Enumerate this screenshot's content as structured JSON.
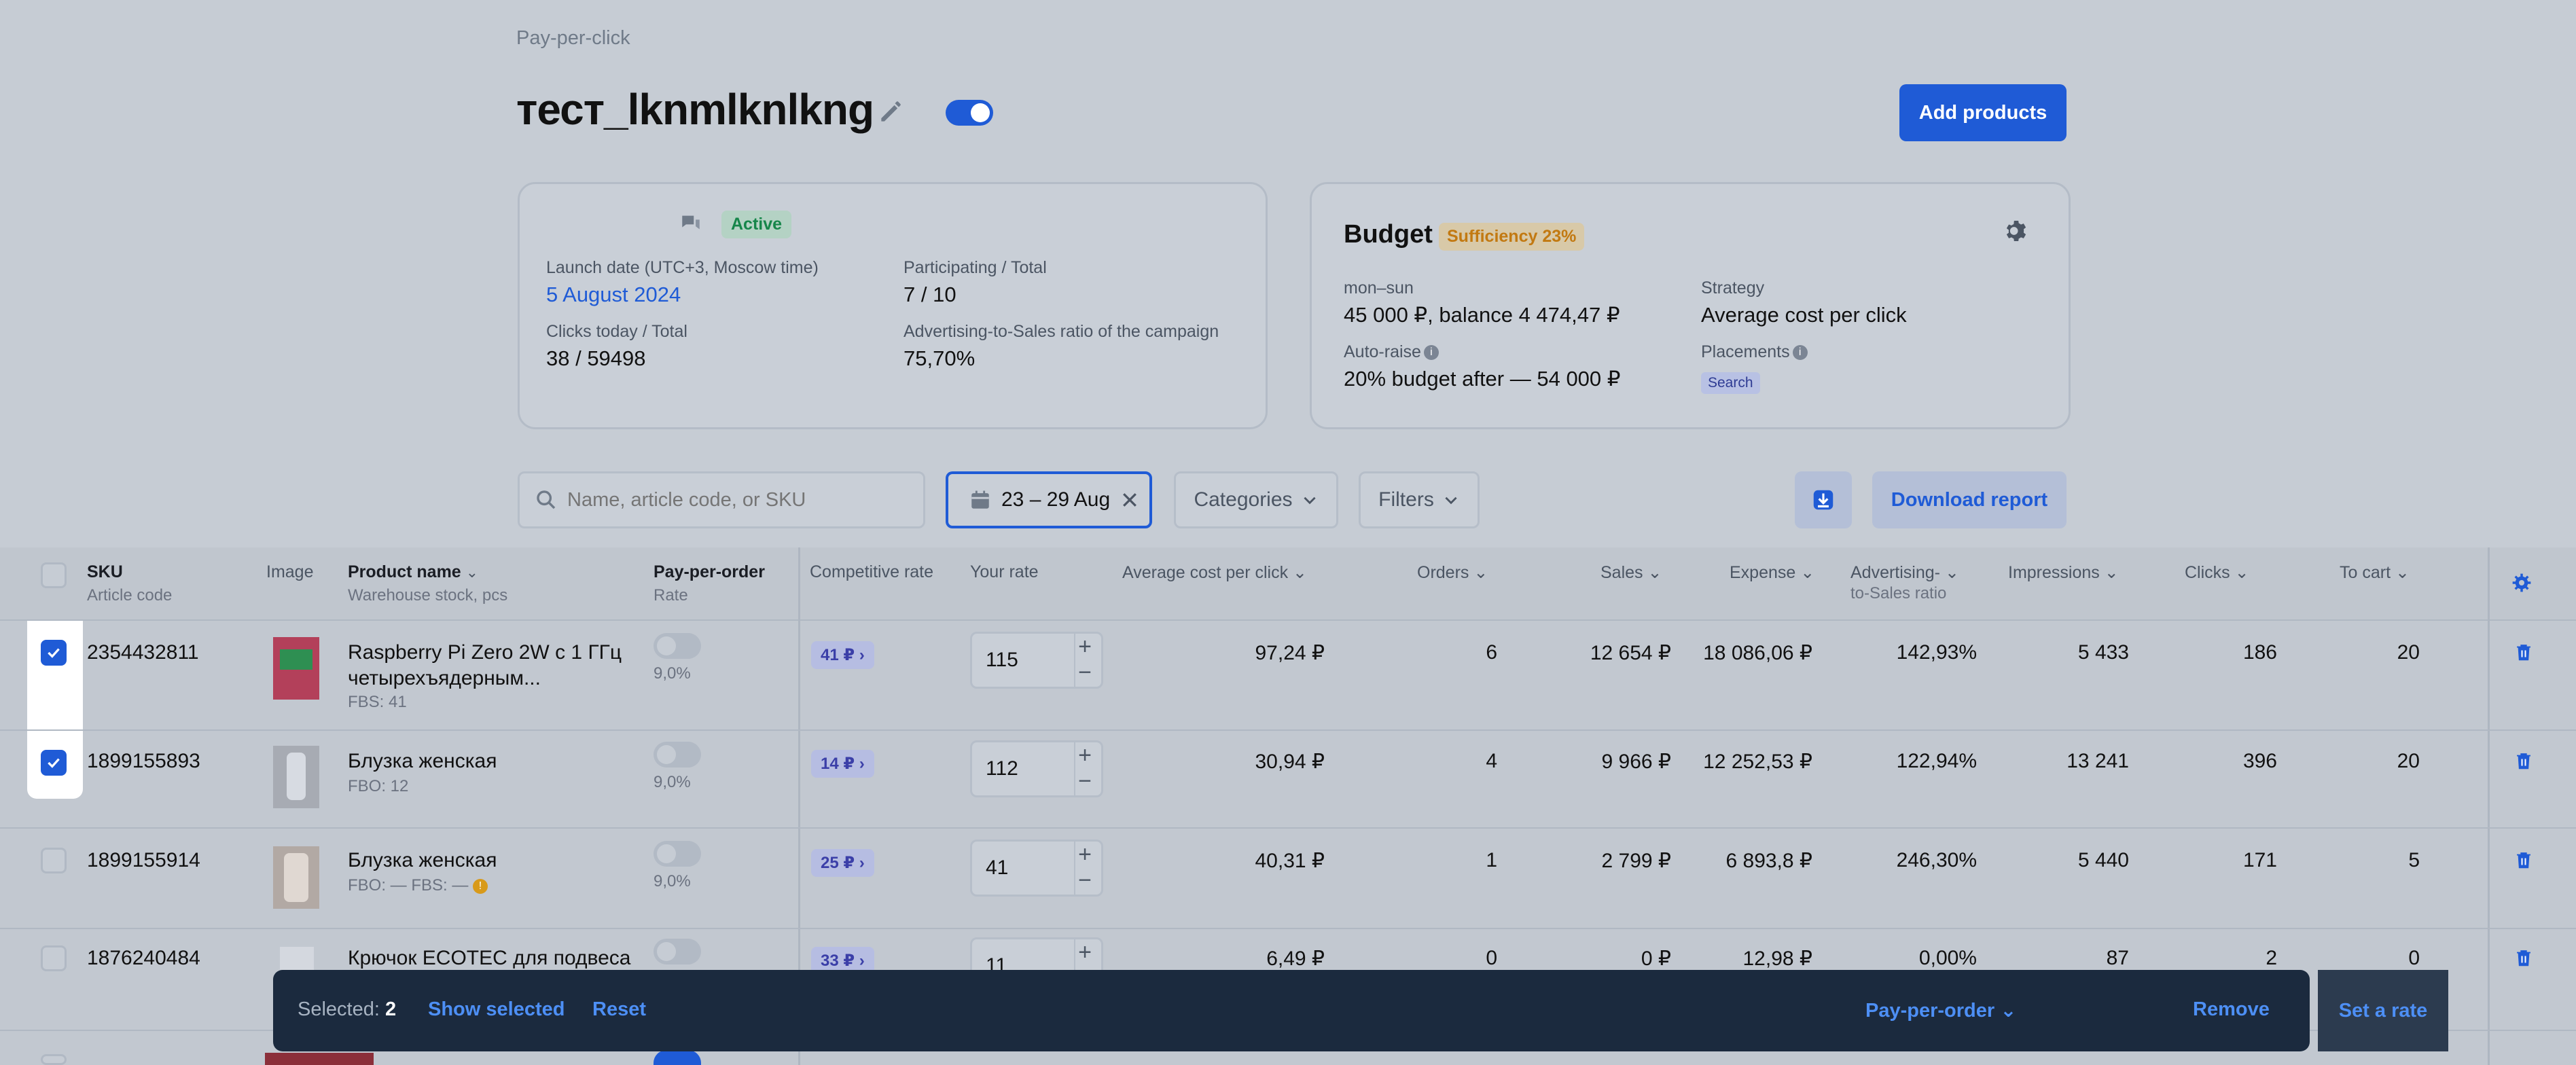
{
  "header": {
    "breadcrumb": "Pay-per-click",
    "title": "тест_lknmlknlkng",
    "add_products": "Add products"
  },
  "campaign": {
    "status": "Active",
    "launch_label": "Launch date (UTC+3, Moscow time)",
    "launch_value": "5 August 2024",
    "participating_label": "Participating / Total",
    "participating_value": "7 / 10",
    "clicks_label": "Clicks today / Total",
    "clicks_value": "38 / 59498",
    "ads_ratio_label": "Advertising-to-Sales ratio of the campaign",
    "ads_ratio_value": "75,70%"
  },
  "budget": {
    "title": "Budget",
    "sufficiency": "Sufficiency 23%",
    "period_label": "mon–sun",
    "period_value": "45 000 ₽, balance 4 474,47 ₽",
    "autoraise_label": "Auto-raise",
    "autoraise_value": "20% budget after — 54 000 ₽",
    "strategy_label": "Strategy",
    "strategy_value": "Average cost per click",
    "placements_label": "Placements",
    "placement_tag": "Search"
  },
  "toolbar": {
    "search_placeholder": "Name, article code, or SKU",
    "date_range": "23 – 29 Aug",
    "categories": "Categories",
    "filters": "Filters",
    "download_report": "Download report"
  },
  "table": {
    "headers": {
      "sku": "SKU",
      "article": "Article code",
      "image": "Image",
      "product_name": "Product name",
      "warehouse": "Warehouse stock, pcs",
      "ppo": "Pay-per-order",
      "ppo_rate": "Rate",
      "competitive": "Competitive rate",
      "your_rate": "Your rate",
      "avg_cpc": "Average cost per click",
      "orders": "Orders",
      "sales": "Sales",
      "expense": "Expense",
      "ads_ratio_1": "Advertising-",
      "ads_ratio_2": "to-Sales ratio",
      "impressions": "Impressions",
      "clicks": "Clicks",
      "to_cart": "To cart"
    },
    "rows": [
      {
        "sku": "2354432811",
        "name1": "Raspberry Pi Zero 2W с 1 ГГц",
        "name2": "четырехъядерным...",
        "stock": "FBS: 41",
        "ppo_rate": "9,0%",
        "comp": "41 ₽",
        "rate": "115",
        "avg": "97,24 ₽",
        "orders": "6",
        "sales": "12 654 ₽",
        "expense": "18 086,06 ₽",
        "ratio": "142,93%",
        "impr": "5 433",
        "clicks": "186",
        "cart": "20",
        "checked": true
      },
      {
        "sku": "1899155893",
        "name1": "Блузка женская",
        "name2": "",
        "stock": "FBO: 12",
        "ppo_rate": "9,0%",
        "comp": "14 ₽",
        "rate": "112",
        "avg": "30,94 ₽",
        "orders": "4",
        "sales": "9 966 ₽",
        "expense": "12 252,53 ₽",
        "ratio": "122,94%",
        "impr": "13 241",
        "clicks": "396",
        "cart": "20",
        "checked": true
      },
      {
        "sku": "1899155914",
        "name1": "Блузка женская",
        "name2": "",
        "stock": "FBO: —   FBS: —",
        "ppo_rate": "9,0%",
        "comp": "25 ₽",
        "rate": "41",
        "avg": "40,31 ₽",
        "orders": "1",
        "sales": "2 799 ₽",
        "expense": "6 893,8 ₽",
        "ratio": "246,30%",
        "impr": "5 440",
        "clicks": "171",
        "cart": "5",
        "checked": false
      },
      {
        "sku": "1876240484",
        "name1": "Крючок ECOTEC для подвеса",
        "name2": "",
        "stock": "",
        "ppo_rate": "",
        "comp": "33 ₽",
        "rate": "11",
        "avg": "6,49 ₽",
        "orders": "0",
        "sales": "0 ₽",
        "expense": "12,98 ₽",
        "ratio": "0,00%",
        "impr": "87",
        "clicks": "2",
        "cart": "0",
        "checked": false
      }
    ]
  },
  "selection_bar": {
    "selected_label": "Selected:",
    "selected_count": "2",
    "show_selected": "Show selected",
    "reset": "Reset",
    "pay_per_order": "Pay-per-order",
    "set_rate": "Set a rate",
    "remove": "Remove"
  },
  "colors": {
    "accent": "#1f5bd6",
    "background_overlay": "#c6ccd4",
    "active_green": "#16864a",
    "sufficiency_orange": "#c27911",
    "bottom_bar": "#1b2a3e"
  }
}
